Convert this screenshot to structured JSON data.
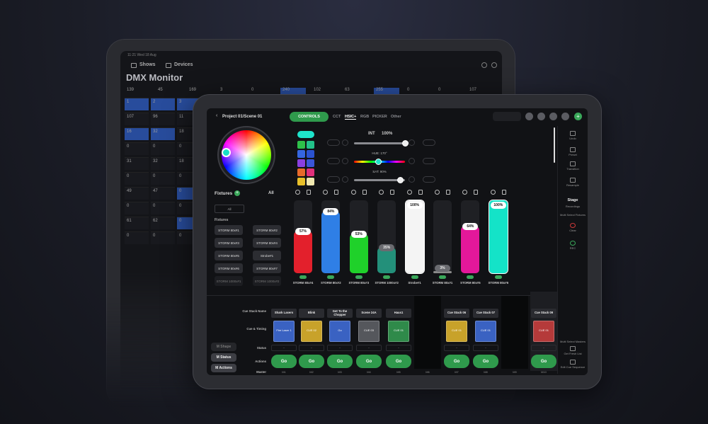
{
  "back_device": {
    "status_bar": "11:21  Wed 18 Aug",
    "tabs": [
      "Shows",
      "Devices"
    ],
    "title": "DMX Monitor",
    "grid": {
      "header_row": [
        139,
        45,
        169,
        3,
        0,
        240,
        102,
        63,
        255,
        0,
        0,
        107
      ],
      "header_highlighted": [
        5,
        8
      ],
      "rows": [
        [
          1,
          2,
          3
        ],
        [
          107,
          96,
          11
        ],
        [
          16,
          32,
          18
        ],
        [
          0,
          0,
          0
        ],
        [
          31,
          32,
          18
        ],
        [
          0,
          0,
          0
        ],
        [
          49,
          47,
          0
        ],
        [
          0,
          0,
          0
        ],
        [
          61,
          62,
          0
        ],
        [
          0,
          0,
          0
        ]
      ],
      "highlighted": [
        [
          0,
          0
        ],
        [
          0,
          1
        ],
        [
          0,
          2
        ],
        [
          2,
          0
        ],
        [
          2,
          1
        ],
        [
          6,
          2
        ],
        [
          8,
          2
        ]
      ]
    }
  },
  "front_device": {
    "header": {
      "breadcrumb": "Project 01/Scene 01",
      "mode": "CONTROLS",
      "tabs": [
        "CCT",
        "HSIC+",
        "RGB",
        "PICKER",
        "Other"
      ],
      "active_tab": 1
    },
    "sliders": [
      {
        "label": "INT",
        "value_label": "100%",
        "level": 100
      },
      {
        "label": "HUE: 170°",
        "level": 47
      },
      {
        "label": "SAT: 90%",
        "level": 90
      }
    ],
    "fixtures_panel": {
      "title": "Fixtures",
      "filter": "All",
      "group_button": "All",
      "section": "Fixtures",
      "items": [
        "STORM 80x#1",
        "STORM 80x#2",
        "STORM 80x#3",
        "STORM 80x#4",
        "STORM 80x#5",
        "Strobe#1",
        "STORM 80x#6",
        "STORM 80x#7",
        "STORM 1000x#1",
        "STORM 1000x#2"
      ]
    },
    "faders": [
      {
        "name": "STORM 80x#4",
        "label": "57%",
        "level": 57,
        "color": "#e3202c"
      },
      {
        "name": "STORM 80x#2",
        "label": "84%",
        "level": 84,
        "color": "#2f7fe6"
      },
      {
        "name": "STORM 80x#3",
        "label": "53%",
        "level": 53,
        "color": "#1fd12a"
      },
      {
        "name": "STORM 1000x#2",
        "label": "35%",
        "level": 35,
        "color": "#23907a"
      },
      {
        "name": "Strobe#1",
        "label": "100%",
        "level": 100,
        "color": "#f4f4f4"
      },
      {
        "name": "STORM 80x#1",
        "label": "3%",
        "level": 3,
        "color": "#8a8a8a"
      },
      {
        "name": "STORM 80x#5",
        "label": "64%",
        "level": 64,
        "color": "#e3189a"
      },
      {
        "name": "STORM 80x#6",
        "label": "100%",
        "level": 100,
        "color": "#14e3c8"
      }
    ],
    "cue_rows": [
      "Cue Stack Name",
      "Cue & Timing",
      "Status",
      "Actions",
      "Master"
    ],
    "cue_stacks": [
      {
        "name": "Shark Lasers",
        "cue": "Fire Laser 1",
        "color": "#3a62c2",
        "status": "-",
        "action": "Go",
        "master": "M1"
      },
      {
        "name": "Blink",
        "cue": "CUE 02",
        "color": "#c8a22a",
        "status": "-",
        "action": "Go",
        "master": "M2"
      },
      {
        "name": "Get To the Chopper",
        "cue": "Go",
        "color": "#3a62c2",
        "status": "-",
        "action": "Go",
        "master": "M3"
      },
      {
        "name": "Scene 24A",
        "cue": "CUE 03",
        "color": "#55575c",
        "status": "-",
        "action": "Go",
        "master": "M4"
      },
      {
        "name": "Haus1",
        "cue": "CUE 01",
        "color": "#2f8a4a",
        "status": "-",
        "action": "Go",
        "master": "M5"
      },
      {
        "master": "M6"
      },
      {
        "name": "Cue Stack 06",
        "cue": "CUE 01",
        "color": "#c8a22a",
        "status": "-",
        "action": "Go",
        "master": "M7"
      },
      {
        "name": "Cue Stack 07",
        "cue": "CUE 01",
        "color": "#3a62c2",
        "status": "-",
        "action": "Go",
        "master": "M8"
      },
      {
        "master": "M9"
      },
      {
        "name": "Cue Stack 09",
        "cue": "CUE 01",
        "color": "#b53a3a",
        "status": "-",
        "action": "Go",
        "master": "M10"
      }
    ],
    "bottom_buttons": [
      "M Shape",
      "M Status",
      "M Actions"
    ],
    "sidebar": [
      "Undo",
      "Preset",
      "Transition",
      "Resample",
      "Stage",
      "Recordings",
      "Multi Select Fixtures",
      "Clear",
      "REC",
      "Multi Select Masters",
      "Get Fresh List",
      "Edit Cue Sequence"
    ]
  }
}
